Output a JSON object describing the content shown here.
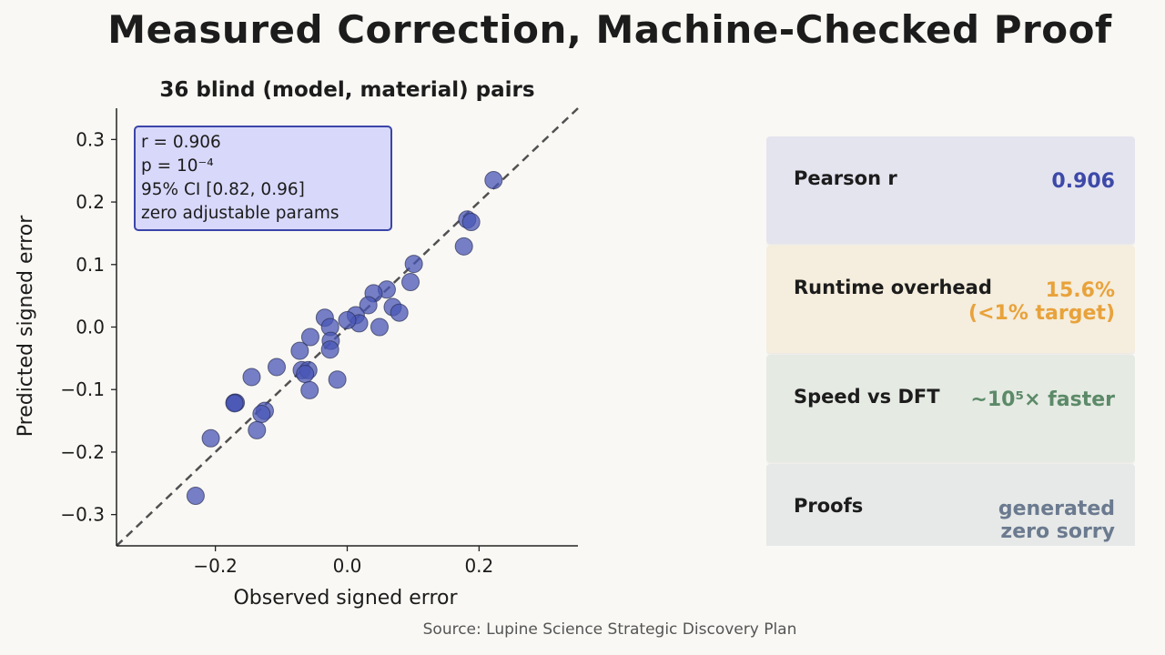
{
  "title": "Measured Correction, Machine-Checked Proof",
  "source": "Source: Lupine Science Strategic Discovery Plan",
  "stats_box": {
    "line1": "r = 0.906",
    "line2": "p = 10⁻⁴",
    "line3": "95% CI [0.82, 0.96]",
    "line4": "zero adjustable params"
  },
  "cards": [
    {
      "label": "Pearson r",
      "value": "0.906",
      "bg": "#e4e4ef",
      "color": "#3d49a8"
    },
    {
      "label": "Runtime overhead",
      "value": "15.6%\n(<1% target)",
      "bg": "#f5eddd",
      "color": "#e8a23b"
    },
    {
      "label": "Speed vs DFT",
      "value": "~10⁵× faster",
      "bg": "#e5eae3",
      "color": "#5c8a68"
    },
    {
      "label": "Proofs",
      "value": "generated\nzero sorry",
      "bg": "#e6e9e8",
      "color": "#6b7a8f"
    }
  ],
  "chart_data": {
    "type": "scatter",
    "title": "36 blind (model, material) pairs",
    "xlabel": "Observed signed error",
    "ylabel": "Predicted signed error",
    "xlim": [
      -0.35,
      0.35
    ],
    "ylim": [
      -0.35,
      0.35
    ],
    "xticks": [
      -0.2,
      0.0,
      0.2
    ],
    "xtick_labels": [
      "−0.2",
      "0.0",
      "0.2"
    ],
    "yticks": [
      -0.3,
      -0.2,
      -0.1,
      0.0,
      0.1,
      0.2,
      0.3
    ],
    "ytick_labels": [
      "−0.3",
      "−0.2",
      "−0.1",
      "0.0",
      "0.1",
      "0.2",
      "0.3"
    ],
    "reference_line": "y = x",
    "point_color": "#4a57b5",
    "grid": false,
    "points": [
      {
        "x": 0.222,
        "y": 0.235
      },
      {
        "x": 0.182,
        "y": 0.172
      },
      {
        "x": 0.188,
        "y": 0.168
      },
      {
        "x": 0.177,
        "y": 0.129
      },
      {
        "x": 0.101,
        "y": 0.101
      },
      {
        "x": 0.096,
        "y": 0.072
      },
      {
        "x": 0.06,
        "y": 0.06
      },
      {
        "x": 0.04,
        "y": 0.054
      },
      {
        "x": 0.069,
        "y": 0.032
      },
      {
        "x": 0.079,
        "y": 0.023
      },
      {
        "x": 0.032,
        "y": 0.035
      },
      {
        "x": 0.013,
        "y": 0.019
      },
      {
        "x": 0.018,
        "y": 0.006
      },
      {
        "x": 0.0,
        "y": 0.011
      },
      {
        "x": 0.049,
        "y": 0.0
      },
      {
        "x": -0.034,
        "y": 0.015
      },
      {
        "x": -0.026,
        "y": 0.0
      },
      {
        "x": -0.056,
        "y": -0.016
      },
      {
        "x": -0.025,
        "y": -0.022
      },
      {
        "x": -0.026,
        "y": -0.036
      },
      {
        "x": -0.072,
        "y": -0.038
      },
      {
        "x": -0.107,
        "y": -0.064
      },
      {
        "x": -0.069,
        "y": -0.069
      },
      {
        "x": -0.059,
        "y": -0.069
      },
      {
        "x": -0.064,
        "y": -0.075
      },
      {
        "x": -0.145,
        "y": -0.08
      },
      {
        "x": -0.015,
        "y": -0.084
      },
      {
        "x": -0.057,
        "y": -0.101
      },
      {
        "x": -0.171,
        "y": -0.121
      },
      {
        "x": -0.169,
        "y": -0.121
      },
      {
        "x": -0.125,
        "y": -0.134
      },
      {
        "x": -0.13,
        "y": -0.139
      },
      {
        "x": -0.137,
        "y": -0.165
      },
      {
        "x": -0.207,
        "y": -0.178
      },
      {
        "x": -0.23,
        "y": -0.27
      },
      {
        "x": -0.171,
        "y": -0.122
      }
    ]
  }
}
